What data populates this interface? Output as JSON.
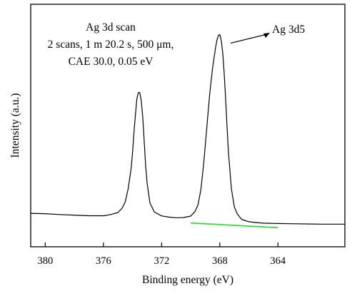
{
  "chart_data": {
    "type": "line",
    "xlabel": "Binding energy (eV)",
    "ylabel": "Intensity (a.u.)",
    "x_reversed": true,
    "xlim": [
      381.0,
      359.4
    ],
    "xticks": [
      380,
      376,
      372,
      368,
      364
    ],
    "xtick_labels": [
      "380",
      "376",
      "372",
      "368",
      "364"
    ],
    "ylim": [
      0,
      100
    ],
    "y_ticks_shown": false,
    "info_lines": [
      "Ag 3d scan",
      "2 scans, 1 m 20.2 s, 500 μm,",
      "CAE 30.0, 0.05 eV"
    ],
    "annotation": {
      "text": "Ag 3d5",
      "x": 367.3,
      "y": 97
    },
    "series": [
      {
        "color": "#000000",
        "x": [
          381.0,
          380.0,
          379.0,
          378.0,
          377.0,
          376.0,
          375.5,
          375.0,
          374.7,
          374.5,
          374.3,
          374.1,
          374.0,
          373.9,
          373.8,
          373.7,
          373.6,
          373.5,
          373.4,
          373.3,
          373.2,
          373.1,
          373.0,
          372.8,
          372.5,
          372.0,
          371.5,
          371.0,
          370.5,
          370.0,
          369.7,
          369.5,
          369.3,
          369.1,
          368.9,
          368.7,
          368.5,
          368.3,
          368.2,
          368.1,
          368.0,
          367.9,
          367.8,
          367.7,
          367.6,
          367.5,
          367.4,
          367.2,
          367.0,
          366.8,
          366.5,
          366.0,
          365.5,
          365.0,
          364.0,
          363.0,
          362.0,
          361.0,
          360.0,
          359.4
        ],
        "y": [
          7.8,
          7.6,
          7.2,
          6.9,
          6.6,
          6.6,
          7.2,
          8.2,
          10.5,
          13.5,
          20.0,
          30.0,
          38.0,
          48.0,
          57.0,
          65.0,
          68.0,
          68.0,
          64.0,
          56.0,
          44.0,
          32.0,
          23.0,
          13.0,
          8.5,
          6.5,
          5.9,
          5.6,
          5.7,
          6.4,
          8.8,
          12.0,
          19.5,
          33.0,
          50.0,
          67.0,
          80.0,
          90.0,
          94.0,
          96.5,
          97.0,
          94.0,
          88.0,
          78.0,
          65.0,
          51.0,
          38.0,
          20.0,
          11.0,
          7.5,
          4.8,
          3.6,
          3.2,
          2.9,
          2.7,
          2.6,
          2.5,
          2.4,
          2.4,
          2.4
        ]
      },
      {
        "color": "#33dd33",
        "x": [
          370.0,
          364.0
        ],
        "y": [
          3.0,
          0.6
        ]
      }
    ]
  }
}
